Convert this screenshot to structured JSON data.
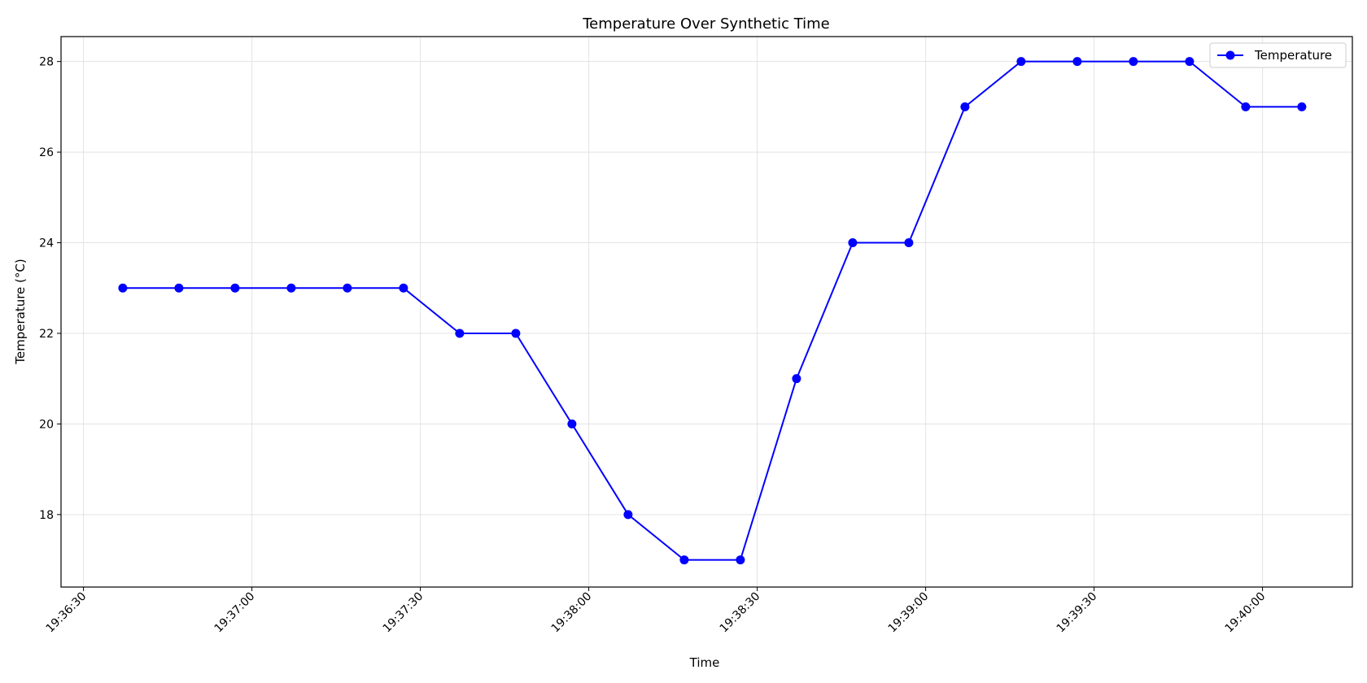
{
  "chart_data": {
    "type": "line",
    "title": "Temperature Over Synthetic Time",
    "xlabel": "Time",
    "ylabel": "Temperature (°C)",
    "grid": true,
    "legend_position": "top-right",
    "xlim": [
      "19:36:26",
      "19:40:16"
    ],
    "ylim": [
      16.4,
      28.55
    ],
    "x_ticks": [
      "19:36:30",
      "19:37:00",
      "19:37:30",
      "19:38:00",
      "19:38:30",
      "19:39:00",
      "19:39:30",
      "19:40:00"
    ],
    "y_ticks": [
      18,
      20,
      22,
      24,
      26,
      28
    ],
    "series": [
      {
        "name": "Temperature",
        "color": "#0000ff",
        "marker": "circle",
        "x": [
          "19:36:37",
          "19:36:47",
          "19:36:57",
          "19:37:07",
          "19:37:17",
          "19:37:27",
          "19:37:37",
          "19:37:47",
          "19:37:57",
          "19:38:07",
          "19:38:17",
          "19:38:27",
          "19:38:37",
          "19:38:47",
          "19:38:57",
          "19:39:07",
          "19:39:17",
          "19:39:27",
          "19:39:37",
          "19:39:47",
          "19:39:57",
          "19:40:07"
        ],
        "y": [
          23,
          23,
          23,
          23,
          23,
          23,
          22,
          22,
          20,
          18,
          17,
          17,
          21,
          24,
          24,
          27,
          28,
          28,
          28,
          28,
          27,
          27
        ]
      }
    ]
  }
}
